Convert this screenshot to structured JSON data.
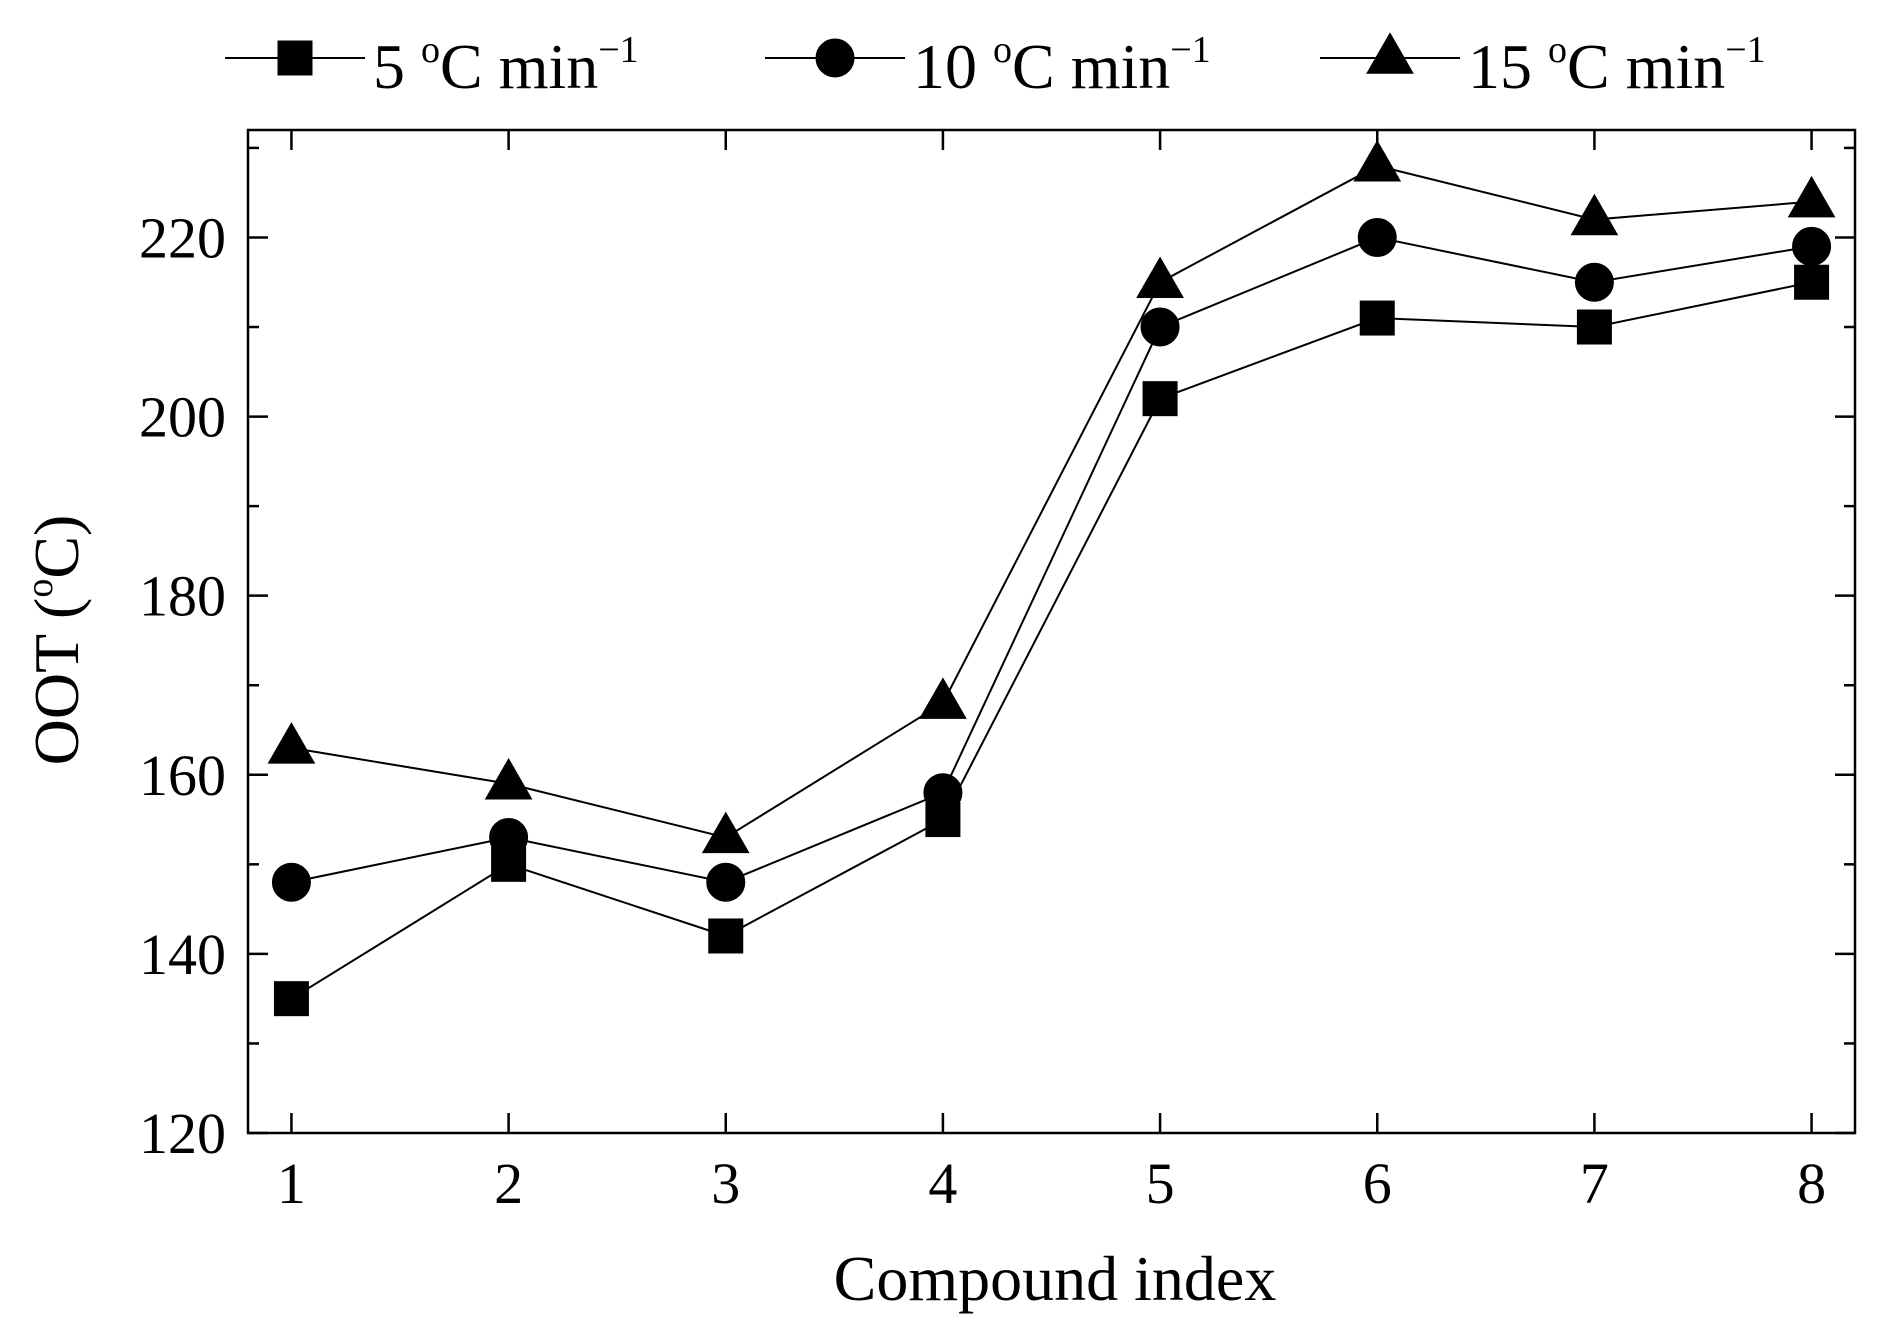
{
  "chart_data": {
    "type": "line",
    "title": "",
    "xlabel": "Compound index",
    "ylabel": "OOT (°C)",
    "ylabel_parts": {
      "pre": "OOT (",
      "sup": "o",
      "post": "C)"
    },
    "x": [
      1,
      2,
      3,
      4,
      5,
      6,
      7,
      8
    ],
    "x_tick_labels": [
      "1",
      "2",
      "3",
      "4",
      "5",
      "6",
      "7",
      "8"
    ],
    "xlim": [
      0.8,
      8.2
    ],
    "ylim": [
      120,
      232
    ],
    "y_ticks": [
      120,
      140,
      160,
      180,
      200,
      220
    ],
    "y_tick_labels": [
      "120",
      "140",
      "160",
      "180",
      "200",
      "220"
    ],
    "legend_position": "top-outside",
    "grid": false,
    "series": [
      {
        "name": "5 °C min−1",
        "label_parts": {
          "num": "5 ",
          "sup1": "o",
          "mid": "C min",
          "sup2": "−1"
        },
        "marker": "square",
        "values": [
          135,
          150,
          142,
          155,
          202,
          211,
          210,
          215
        ]
      },
      {
        "name": "10 °C min−1",
        "label_parts": {
          "num": "10 ",
          "sup1": "o",
          "mid": "C min",
          "sup2": "−1"
        },
        "marker": "circle",
        "values": [
          148,
          153,
          148,
          158,
          210,
          220,
          215,
          219
        ]
      },
      {
        "name": "15 °C min−1",
        "label_parts": {
          "num": "15 ",
          "sup1": "o",
          "mid": "C min",
          "sup2": "−1"
        },
        "marker": "triangle",
        "values": [
          163,
          159,
          153,
          168,
          215,
          228,
          222,
          224
        ]
      }
    ]
  }
}
